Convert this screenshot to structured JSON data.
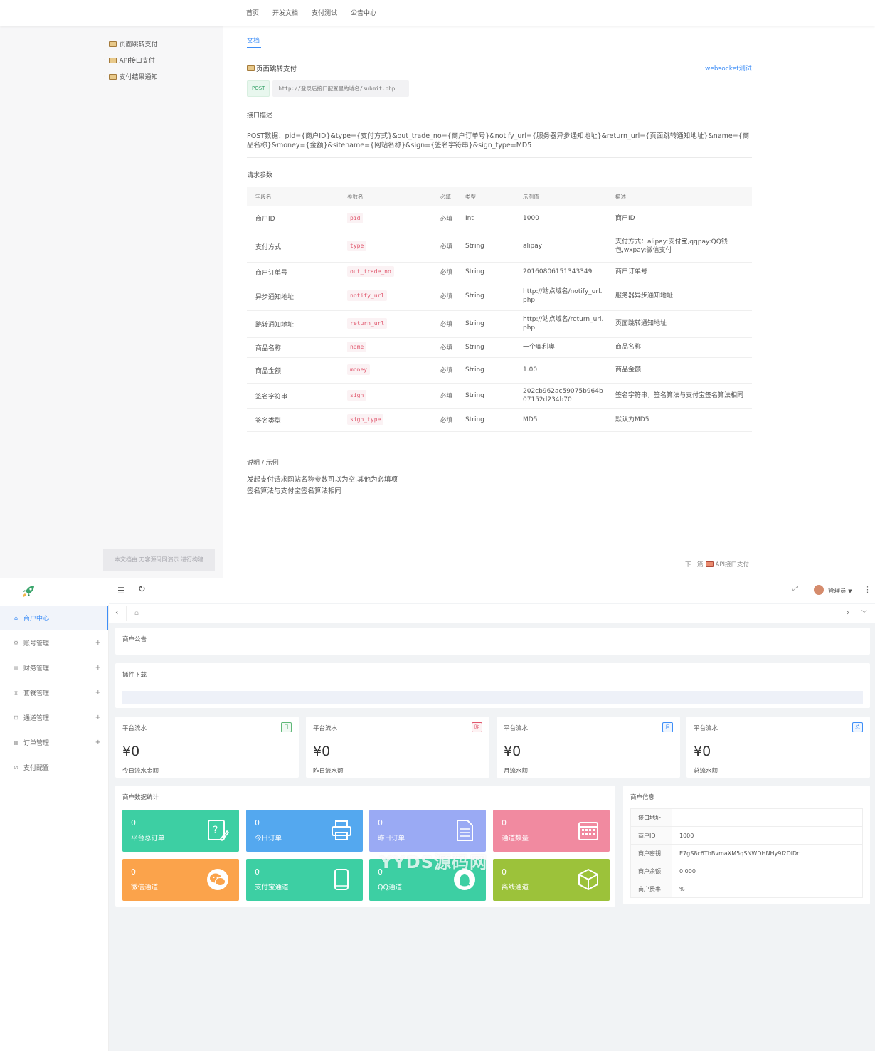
{
  "doc": {
    "nav": [
      "首页",
      "开发文档",
      "支付测试",
      "公告中心"
    ],
    "sidebar": [
      "页面跳转支付",
      "API接口支付",
      "支付结果通知"
    ],
    "tab": "文档",
    "heading": "页面跳转支付",
    "ws_link": "websocket测试",
    "method": "POST",
    "url": "http://登录后接口配置里的域名/submit.php",
    "desc_title": "接口描述",
    "post_data": "POST数据：pid={商户ID}&type={支付方式}&out_trade_no={商户订单号}&notify_url={服务器异步通知地址}&return_url={页面跳转通知地址}&name={商品名称}&money={金额}&sitename={网站名称}&sign={签名字符串}&sign_type=MD5",
    "params_title": "请求参数",
    "params_headers": [
      "字段名",
      "参数名",
      "必填",
      "类型",
      "示例值",
      "描述"
    ],
    "params": [
      {
        "field": "商户ID",
        "name": "pid",
        "req": "必填",
        "type": "Int",
        "example": "1000",
        "desc": "商户ID"
      },
      {
        "field": "支付方式",
        "name": "type",
        "req": "必填",
        "type": "String",
        "example": "alipay",
        "desc": "支付方式：alipay:支付宝,qqpay:QQ钱包,wxpay:微信支付"
      },
      {
        "field": "商户订单号",
        "name": "out_trade_no",
        "req": "必填",
        "type": "String",
        "example": "20160806151343349",
        "desc": "商户订单号"
      },
      {
        "field": "异步通知地址",
        "name": "notify_url",
        "req": "必填",
        "type": "String",
        "example": "http://站点域名/notify_url.php",
        "desc": "服务器异步通知地址"
      },
      {
        "field": "跳转通知地址",
        "name": "return_url",
        "req": "必填",
        "type": "String",
        "example": "http://站点域名/return_url.php",
        "desc": "页面跳转通知地址"
      },
      {
        "field": "商品名称",
        "name": "name",
        "req": "必填",
        "type": "String",
        "example": "一个奥利奥",
        "desc": "商品名称"
      },
      {
        "field": "商品金额",
        "name": "money",
        "req": "必填",
        "type": "String",
        "example": "1.00",
        "desc": "商品金额"
      },
      {
        "field": "签名字符串",
        "name": "sign",
        "req": "必填",
        "type": "String",
        "example": "202cb962ac59075b964b07152d234b70",
        "desc": "签名字符串，签名算法与支付宝签名算法相同"
      },
      {
        "field": "签名类型",
        "name": "sign_type",
        "req": "必填",
        "type": "String",
        "example": "MD5",
        "desc": "默认为MD5"
      }
    ],
    "notes_title": "说明 / 示例",
    "notes": [
      "发起支付请求网站名称参数可以为空,其他为必填项",
      "签名算法与支付宝签名算法相同"
    ],
    "footer_note": "本文档由 刀客源码网演示 进行构建",
    "next_label": "下一篇",
    "next_target": "API接口支付"
  },
  "admin": {
    "menu": [
      {
        "label": "商户中心",
        "icon": "home-icon",
        "active": true,
        "expandable": false
      },
      {
        "label": "账号管理",
        "icon": "gear-icon",
        "active": false,
        "expandable": true
      },
      {
        "label": "财务管理",
        "icon": "finance-icon",
        "active": false,
        "expandable": true
      },
      {
        "label": "套餐管理",
        "icon": "package-icon",
        "active": false,
        "expandable": true
      },
      {
        "label": "通道管理",
        "icon": "channel-icon",
        "active": false,
        "expandable": true
      },
      {
        "label": "订单管理",
        "icon": "order-icon",
        "active": false,
        "expandable": true
      },
      {
        "label": "支付配置",
        "icon": "config-icon",
        "active": false,
        "expandable": false
      }
    ],
    "user_label": "管理员",
    "notice_title": "商户公告",
    "plugin_title": "插件下载",
    "stats": [
      {
        "title": "平台流水",
        "tag": "日",
        "tag_color": "#5fb878",
        "value": "¥0",
        "sub": "今日流水金额"
      },
      {
        "title": "平台流水",
        "tag": "昨",
        "tag_color": "#e0566c",
        "value": "¥0",
        "sub": "昨日流水额"
      },
      {
        "title": "平台流水",
        "tag": "月",
        "tag_color": "#3e8ef7",
        "value": "¥0",
        "sub": "月流水额"
      },
      {
        "title": "平台流水",
        "tag": "总",
        "tag_color": "#3e8ef7",
        "value": "¥0",
        "sub": "总流水额"
      }
    ],
    "data_title": "商户数据统计",
    "tiles": [
      {
        "value": "0",
        "label": "平台总订单",
        "color": "#3dcfa3",
        "icon": "edit-icon"
      },
      {
        "value": "0",
        "label": "今日订单",
        "color": "#54a8ef",
        "icon": "printer-icon"
      },
      {
        "value": "0",
        "label": "昨日订单",
        "color": "#9aaaf4",
        "icon": "document-icon"
      },
      {
        "value": "0",
        "label": "通道数量",
        "color": "#f18aa0",
        "icon": "calendar-icon"
      },
      {
        "value": "0",
        "label": "微信通道",
        "color": "#fba34b",
        "icon": "wechat-icon"
      },
      {
        "value": "0",
        "label": "支付宝通道",
        "color": "#3dcfa3",
        "icon": "tablet-icon"
      },
      {
        "value": "0",
        "label": "QQ通道",
        "color": "#3dcfa3",
        "icon": "qq-icon"
      },
      {
        "value": "0",
        "label": "离线通道",
        "color": "#9cc23a",
        "icon": "box-icon"
      }
    ],
    "info_title": "商户信息",
    "info": [
      {
        "k": "接口地址",
        "v": ""
      },
      {
        "k": "商户ID",
        "v": "1000"
      },
      {
        "k": "商户密钥",
        "v": "E7gS8c6TbBvmaXM5qSNWDHNHy9l2DiDr"
      },
      {
        "k": "商户余额",
        "v": "0.000"
      },
      {
        "k": "商户费率",
        "v": "%"
      }
    ],
    "watermark": "YYDS源码网"
  }
}
